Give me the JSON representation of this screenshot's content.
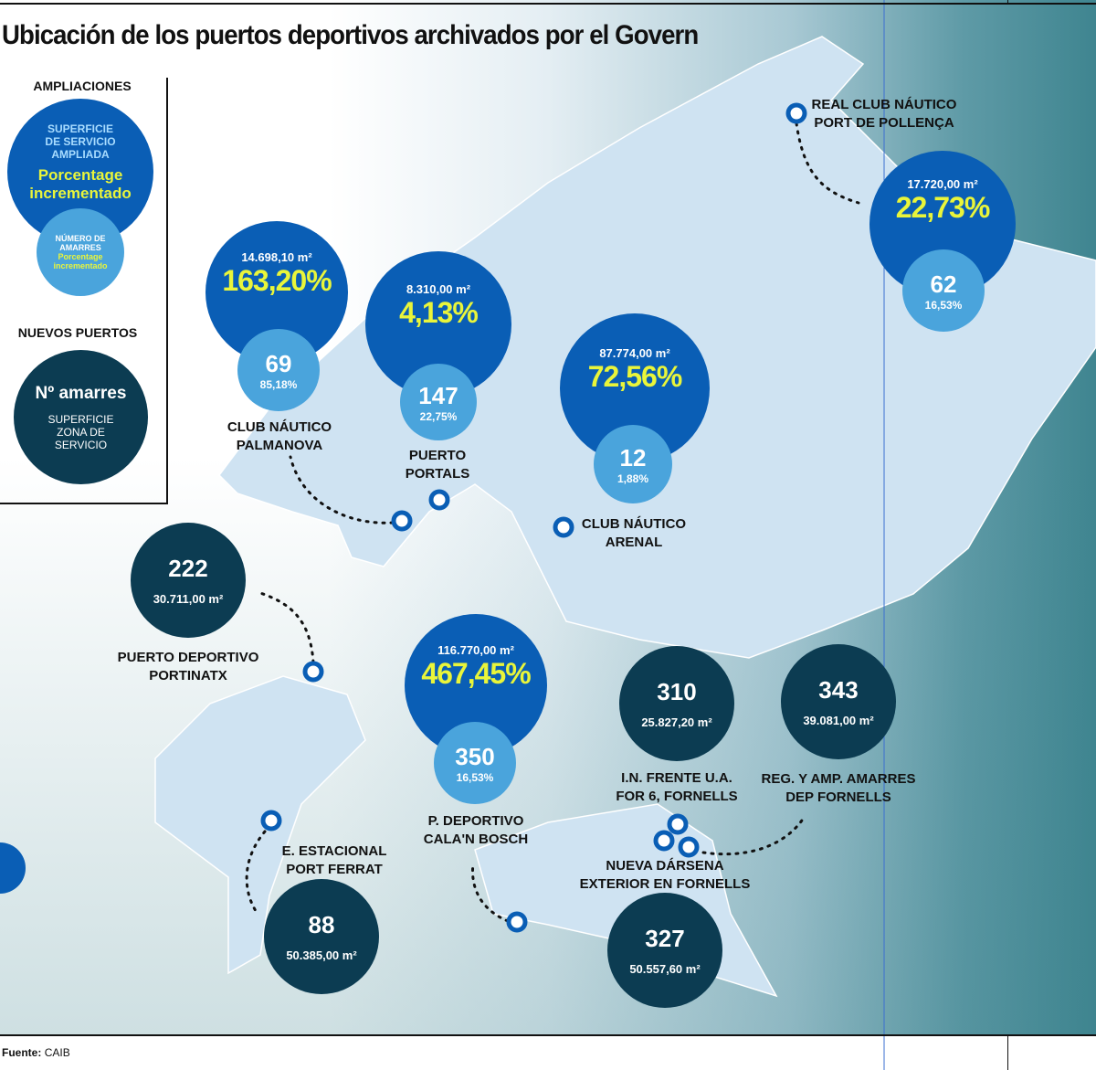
{
  "title": "Ubicación de los puertos deportivos archivados por el Govern",
  "legend": {
    "ampliaciones_heading": "AMPLIACIONES",
    "big_circle_top": "SUPERFICIE DE SERVICIO AMPLIADA",
    "big_circle_pct": "Porcentage incrementado",
    "small_circle_top": "NÚMERO DE AMARRES",
    "small_circle_pct": "Porcentage incrementado",
    "nuevos_heading": "NUEVOS PUERTOS",
    "new_circle_top": "Nº amarres",
    "new_circle_bottom": "SUPERFICIE ZONA DE SERVICIO"
  },
  "colors": {
    "ampliacion_surface": "#0a5eb5",
    "ampliacion_amarres": "#4aa4dc",
    "nuevo_puerto": "#0c3c52",
    "percentage": "#e9f53a",
    "island": "#cfe3f2"
  },
  "ampliaciones": [
    {
      "name": "REAL CLUB NÁUTICO PORT DE POLLENÇA",
      "surface": "17.720,00 m²",
      "surface_pct": "22,73%",
      "amarres": "62",
      "amarres_pct": "16,53%"
    },
    {
      "name": "CLUB NÁUTICO PALMANOVA",
      "surface": "14.698,10 m²",
      "surface_pct": "163,20%",
      "amarres": "69",
      "amarres_pct": "85,18%"
    },
    {
      "name": "PUERTO PORTALS",
      "surface": "8.310,00 m²",
      "surface_pct": "4,13%",
      "amarres": "147",
      "amarres_pct": "22,75%"
    },
    {
      "name": "CLUB NÁUTICO ARENAL",
      "surface": "87.774,00 m²",
      "surface_pct": "72,56%",
      "amarres": "12",
      "amarres_pct": "1,88%"
    },
    {
      "name": "P. DEPORTIVO CALA'N BOSCH",
      "surface": "116.770,00 m²",
      "surface_pct": "467,45%",
      "amarres": "350",
      "amarres_pct": "16,53%"
    }
  ],
  "nuevos": [
    {
      "name": "PUERTO DEPORTIVO PORTINATX",
      "amarres": "222",
      "surface": "30.711,00 m²"
    },
    {
      "name": "E. ESTACIONAL PORT FERRAT",
      "amarres": "88",
      "surface": "50.385,00 m²"
    },
    {
      "name": "I.N.  FRENTE U.A. FOR 6, FORNELLS",
      "amarres": "310",
      "surface": "25.827,20 m²"
    },
    {
      "name": "REG. Y AMP. AMARRES DEP FORNELLS",
      "amarres": "343",
      "surface": "39.081,00 m²"
    },
    {
      "name": "NUEVA DÁRSENA EXTERIOR EN FORNELLS",
      "amarres": "327",
      "surface": "50.557,60 m²"
    }
  ],
  "source": {
    "label": "Fuente:",
    "value": "CAIB"
  }
}
